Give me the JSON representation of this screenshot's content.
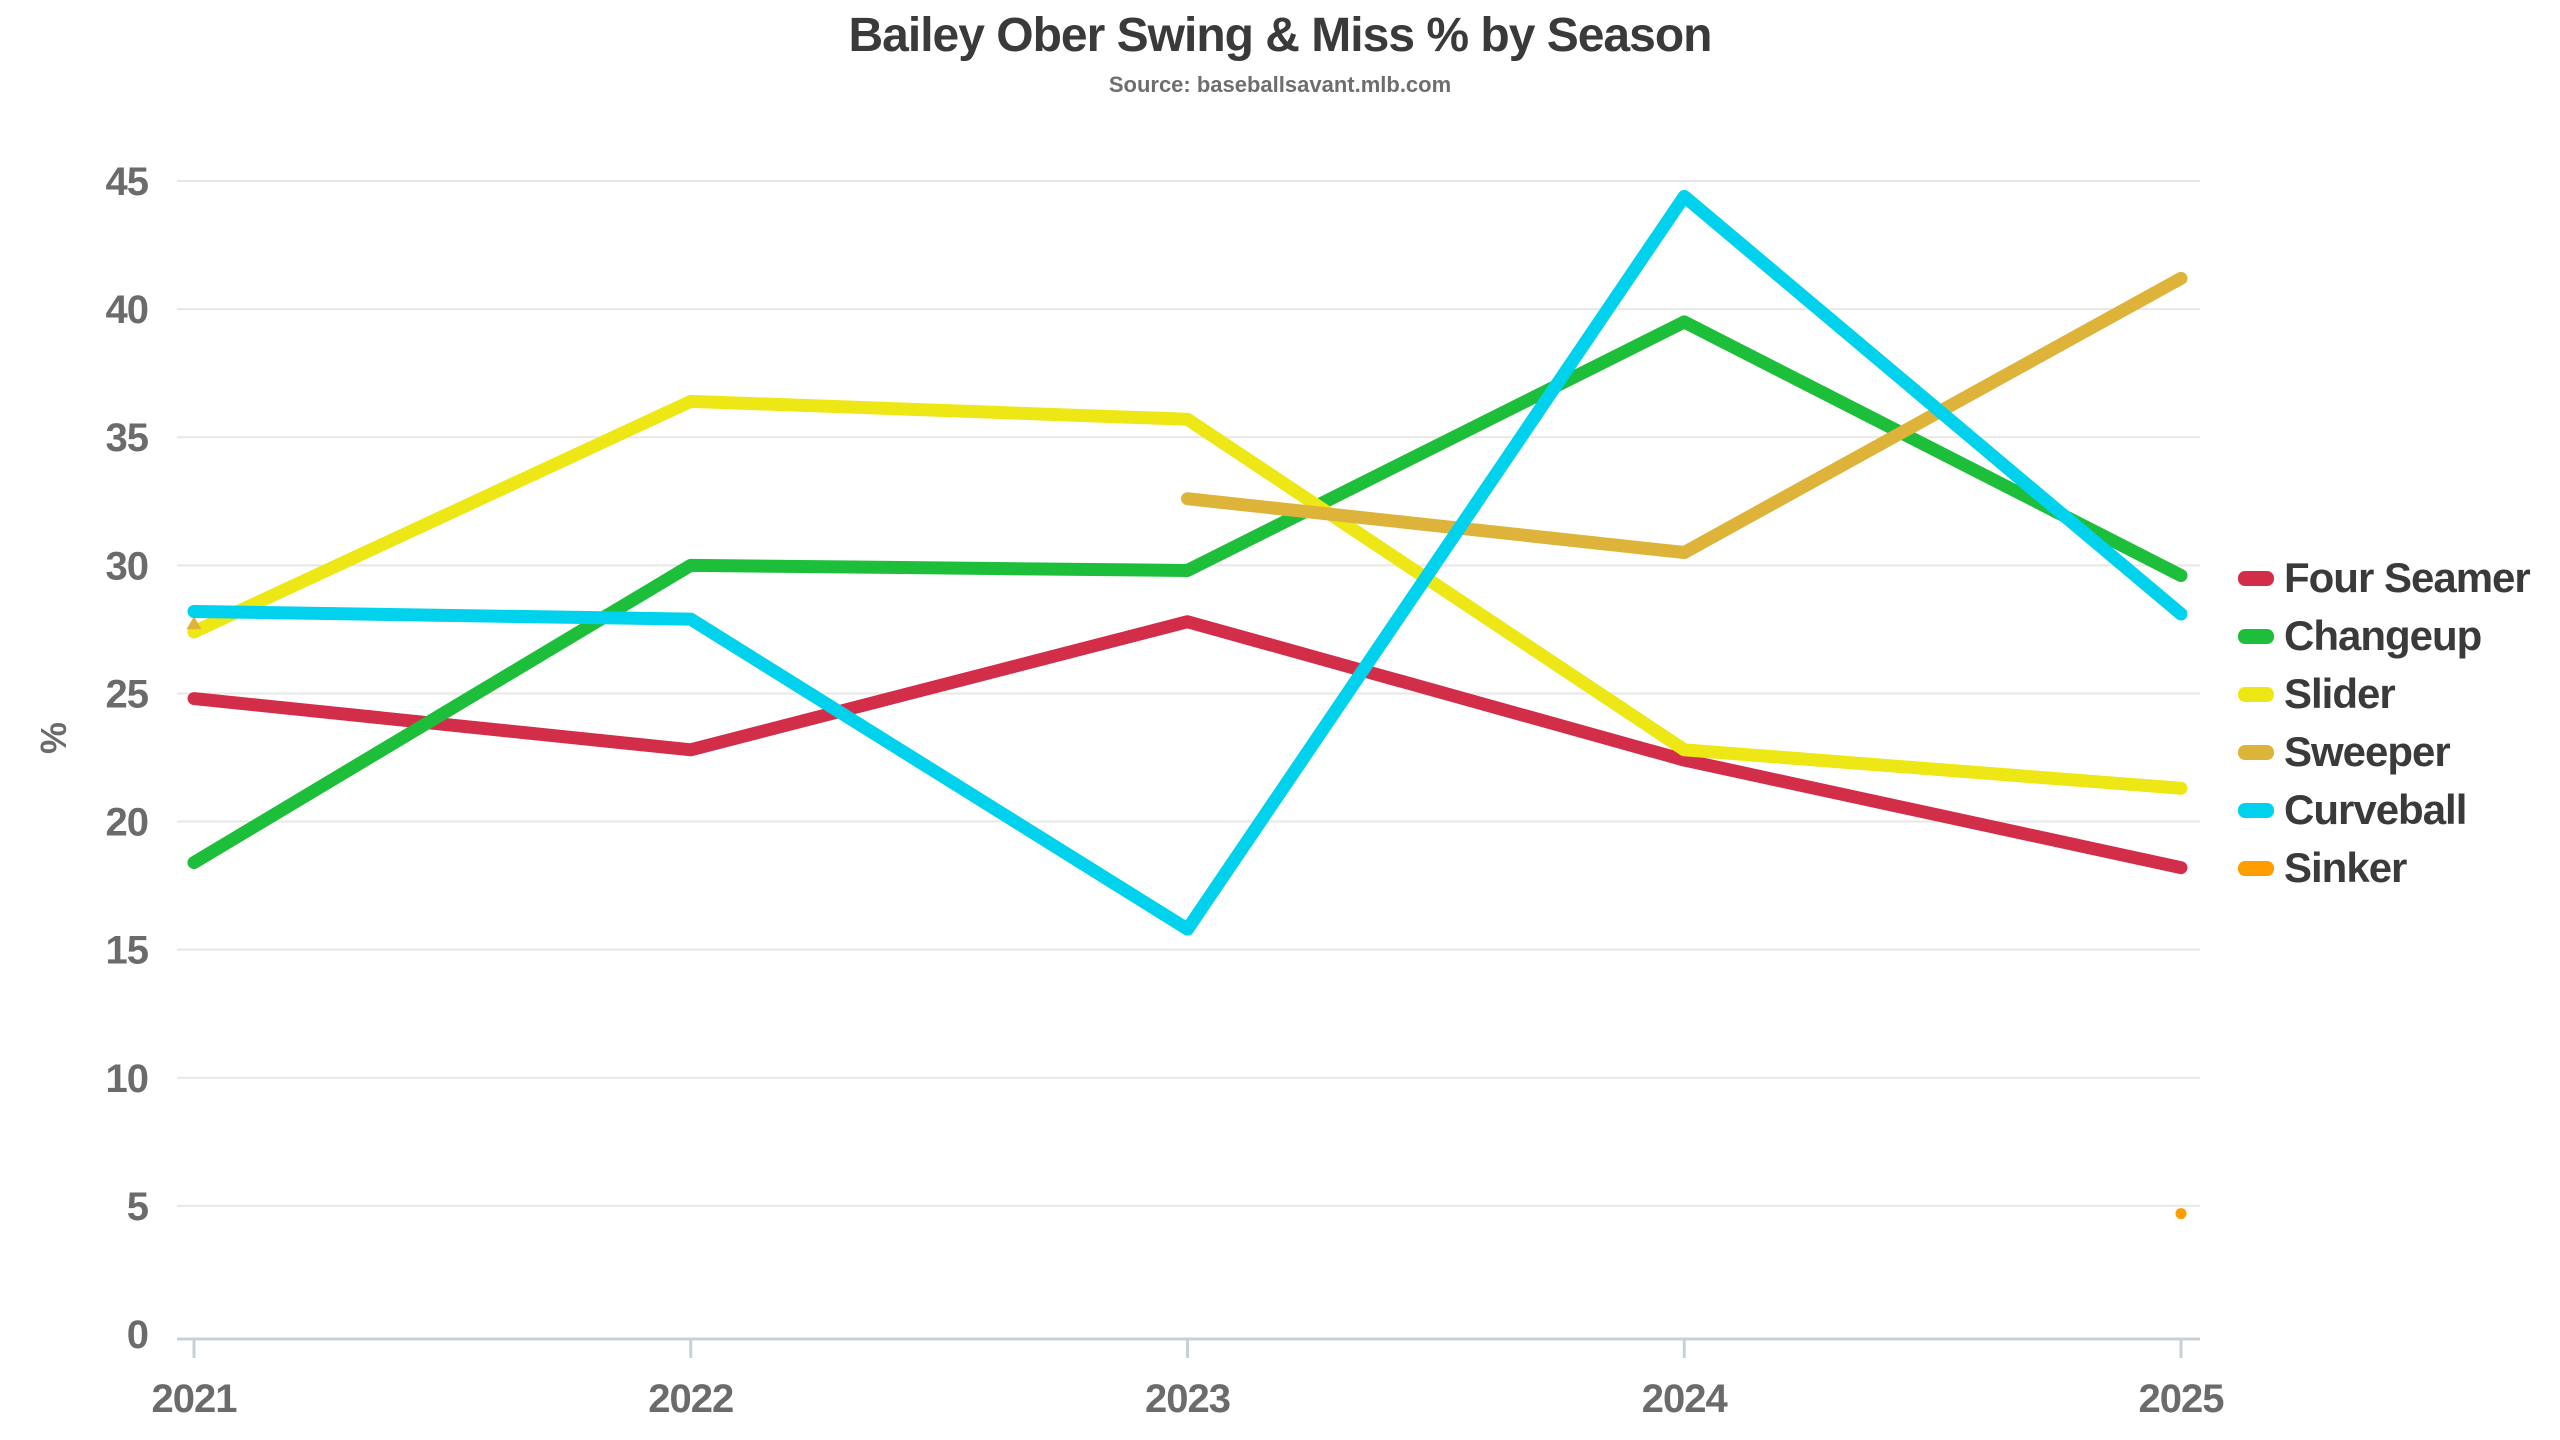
{
  "chart_data": {
    "type": "line",
    "title": "Bailey Ober Swing & Miss % by Season",
    "subtitle": "Source: baseballsavant.mlb.com",
    "xlabel": "",
    "ylabel": "%",
    "x": [
      2021,
      2022,
      2023,
      2024,
      2025
    ],
    "ylim": [
      0,
      45
    ],
    "ytick_step": 5,
    "grid": true,
    "legend_position": "right",
    "series": [
      {
        "name": "Four Seamer",
        "color": "#D22D49",
        "values": [
          24.8,
          22.8,
          27.8,
          22.4,
          18.2
        ]
      },
      {
        "name": "Changeup",
        "color": "#1DBE3A",
        "values": [
          18.4,
          30.0,
          29.8,
          39.5,
          29.6
        ]
      },
      {
        "name": "Slider",
        "color": "#EEE716",
        "values": [
          27.4,
          36.4,
          35.7,
          22.8,
          21.3
        ]
      },
      {
        "name": "Sweeper",
        "color": "#DDB33A",
        "values": [
          27.7,
          null,
          32.6,
          30.5,
          41.2
        ],
        "isolated_marker": "triangle"
      },
      {
        "name": "Curveball",
        "color": "#00D1ED",
        "values": [
          28.2,
          27.9,
          15.8,
          44.4,
          28.1
        ]
      },
      {
        "name": "Sinker",
        "color": "#FE9D00",
        "values": [
          null,
          null,
          null,
          null,
          4.7
        ],
        "isolated_marker": "circle"
      }
    ]
  },
  "style_colors": {
    "title": "#3a3a3a",
    "subtitle": "#6e6e6e",
    "tick_label": "#6b6b6b",
    "gridline": "#e7e7e7",
    "axis_line": "#c7d0d9",
    "background": "#ffffff"
  }
}
